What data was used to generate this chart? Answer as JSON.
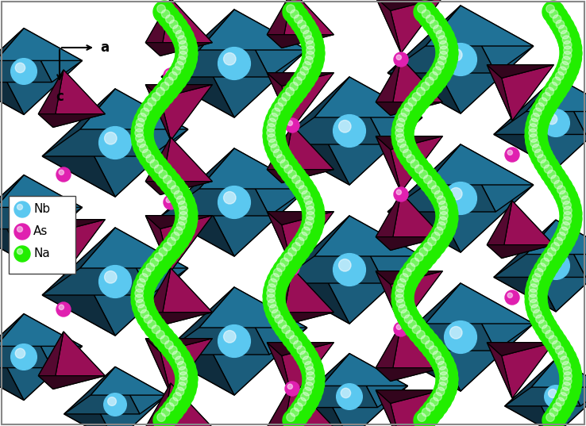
{
  "figsize": [
    7.38,
    5.37
  ],
  "dpi": 100,
  "bg_color": "#ffffff",
  "nb_poly_color_dark": "#0d3d52",
  "nb_poly_color_mid": "#1a6b8a",
  "nb_poly_color_light": "#2a8cad",
  "nb_sphere_color": "#5bc8f0",
  "as_poly_color_dark": "#6b0040",
  "as_poly_color_mid": "#aa1060",
  "as_poly_color_light": "#cc2080",
  "na_color": "#22ee00",
  "edge_color": "#000000",
  "border_color": "#aaaaaa",
  "legend": {
    "nb_label": "Nb",
    "as_label": "As",
    "na_label": "Na",
    "nb_sphere": "#5bc8f0",
    "as_sphere": "#e020a0",
    "na_sphere": "#22ee00"
  }
}
